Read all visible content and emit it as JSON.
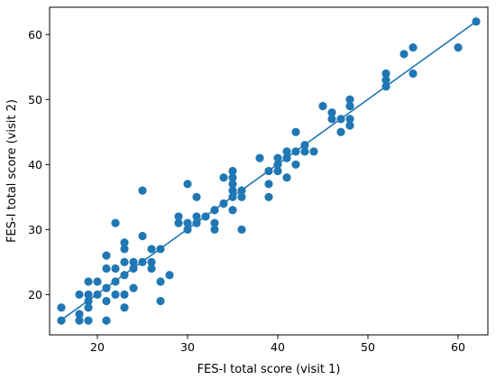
{
  "chart_data": {
    "type": "scatter",
    "title": "",
    "xlabel": "FES-I total score (visit 1)",
    "ylabel": "FES-I total score (visit 2)",
    "xlim": [
      14.7,
      63.3
    ],
    "ylim": [
      13.8,
      64.2
    ],
    "xticks": [
      20,
      30,
      40,
      50,
      60
    ],
    "yticks": [
      20,
      30,
      40,
      50,
      60
    ],
    "grid": false,
    "legend": "none",
    "marker_color": "#1f77b4",
    "line_color": "#1f77b4",
    "series": [
      {
        "points": [
          [
            16,
            16
          ],
          [
            16,
            18
          ],
          [
            18,
            16
          ],
          [
            18,
            17
          ],
          [
            18,
            20
          ],
          [
            19,
            16
          ],
          [
            19,
            18
          ],
          [
            19,
            19
          ],
          [
            19,
            20
          ],
          [
            19,
            22
          ],
          [
            20,
            20
          ],
          [
            20,
            22
          ],
          [
            21,
            16
          ],
          [
            21,
            19
          ],
          [
            21,
            21
          ],
          [
            21,
            24
          ],
          [
            21,
            26
          ],
          [
            22,
            20
          ],
          [
            22,
            22
          ],
          [
            22,
            24
          ],
          [
            22,
            31
          ],
          [
            23,
            18
          ],
          [
            23,
            20
          ],
          [
            23,
            23
          ],
          [
            23,
            25
          ],
          [
            23,
            27
          ],
          [
            23,
            28
          ],
          [
            24,
            21
          ],
          [
            24,
            24
          ],
          [
            24,
            25
          ],
          [
            25,
            25
          ],
          [
            25,
            29
          ],
          [
            25,
            36
          ],
          [
            26,
            24
          ],
          [
            26,
            25
          ],
          [
            26,
            27
          ],
          [
            27,
            19
          ],
          [
            27,
            22
          ],
          [
            27,
            27
          ],
          [
            28,
            23
          ],
          [
            29,
            31
          ],
          [
            29,
            32
          ],
          [
            30,
            30
          ],
          [
            30,
            31
          ],
          [
            30,
            37
          ],
          [
            31,
            31
          ],
          [
            31,
            32
          ],
          [
            31,
            35
          ],
          [
            32,
            32
          ],
          [
            33,
            30
          ],
          [
            33,
            31
          ],
          [
            33,
            33
          ],
          [
            34,
            34
          ],
          [
            34,
            38
          ],
          [
            35,
            33
          ],
          [
            35,
            35
          ],
          [
            35,
            36
          ],
          [
            35,
            37
          ],
          [
            35,
            38
          ],
          [
            35,
            39
          ],
          [
            36,
            30
          ],
          [
            36,
            35
          ],
          [
            36,
            36
          ],
          [
            38,
            41
          ],
          [
            39,
            35
          ],
          [
            39,
            37
          ],
          [
            39,
            39
          ],
          [
            40,
            39
          ],
          [
            40,
            40
          ],
          [
            40,
            41
          ],
          [
            41,
            38
          ],
          [
            41,
            41
          ],
          [
            41,
            42
          ],
          [
            42,
            40
          ],
          [
            42,
            42
          ],
          [
            42,
            45
          ],
          [
            43,
            42
          ],
          [
            43,
            43
          ],
          [
            44,
            42
          ],
          [
            45,
            49
          ],
          [
            46,
            47
          ],
          [
            46,
            48
          ],
          [
            47,
            45
          ],
          [
            47,
            47
          ],
          [
            48,
            46
          ],
          [
            48,
            47
          ],
          [
            48,
            49
          ],
          [
            48,
            50
          ],
          [
            52,
            52
          ],
          [
            52,
            53
          ],
          [
            52,
            54
          ],
          [
            54,
            57
          ],
          [
            55,
            54
          ],
          [
            55,
            58
          ],
          [
            60,
            58
          ],
          [
            62,
            62
          ]
        ]
      }
    ],
    "fit_line": {
      "x": [
        16,
        62
      ],
      "y": [
        16.1,
        62
      ]
    }
  }
}
